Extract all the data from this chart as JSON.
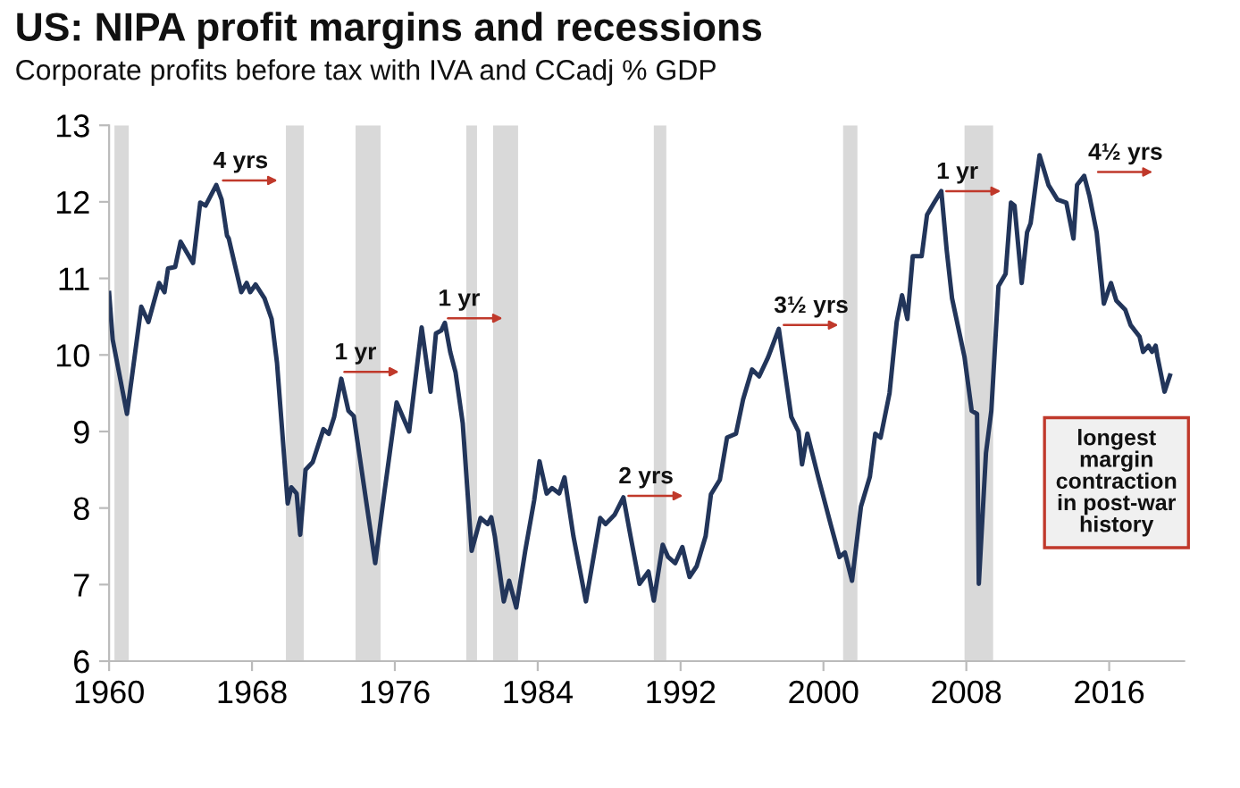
{
  "chart_data": {
    "type": "line",
    "title": "US: NIPA profit margins and recessions",
    "subtitle": "Corporate profits before tax with IVA and CCadj % GDP",
    "x": [
      1960.0,
      1960.2,
      1961.0,
      1961.8,
      1962.2,
      1962.8,
      1963.1,
      1963.3,
      1963.7,
      1964.0,
      1964.7,
      1965.1,
      1965.4,
      1966.0,
      1966.3,
      1966.6,
      1966.7,
      1967.4,
      1967.7,
      1967.9,
      1968.2,
      1968.7,
      1969.1,
      1969.4,
      1970.0,
      1970.2,
      1970.5,
      1970.7,
      1971.0,
      1971.4,
      1972.0,
      1972.3,
      1972.6,
      1973.0,
      1973.4,
      1973.7,
      1974.9,
      1975.4,
      1976.1,
      1976.8,
      1977.5,
      1978.0,
      1978.3,
      1978.6,
      1978.8,
      1979.1,
      1979.4,
      1979.8,
      1980.3,
      1980.8,
      1981.2,
      1981.4,
      1981.6,
      1982.1,
      1982.4,
      1982.8,
      1983.3,
      1983.8,
      1984.1,
      1984.5,
      1984.8,
      1985.2,
      1985.5,
      1986.0,
      1986.7,
      1987.5,
      1987.8,
      1988.3,
      1988.8,
      1989.2,
      1989.7,
      1990.2,
      1990.5,
      1991.0,
      1991.3,
      1991.7,
      1992.1,
      1992.5,
      1992.9,
      1993.4,
      1993.7,
      1994.2,
      1994.6,
      1995.1,
      1995.5,
      1996.0,
      1996.4,
      1996.9,
      1997.5,
      1998.2,
      1998.6,
      1998.8,
      1999.1,
      1999.7,
      2000.4,
      2000.9,
      2001.2,
      2001.6,
      2002.1,
      2002.6,
      2002.9,
      2003.2,
      2003.7,
      2004.1,
      2004.4,
      2004.7,
      2005.0,
      2005.5,
      2005.8,
      2006.2,
      2006.6,
      2006.9,
      2007.2,
      2007.9,
      2008.3,
      2008.6,
      2008.7,
      2009.1,
      2009.4,
      2009.8,
      2010.2,
      2010.5,
      2010.7,
      2011.1,
      2011.4,
      2011.6,
      2012.1,
      2012.6,
      2013.1,
      2013.6,
      2014.0,
      2014.2,
      2014.6,
      2014.9,
      2015.3,
      2015.7,
      2016.1,
      2016.4,
      2016.9,
      2017.2,
      2017.7,
      2017.9,
      2018.2,
      2018.4,
      2018.6,
      2018.7,
      2019.1,
      2019.4
    ],
    "series": [
      {
        "color": "#22355a",
        "values": [
          10.81,
          10.2,
          9.23,
          10.63,
          10.43,
          10.94,
          10.82,
          11.13,
          11.15,
          11.48,
          11.2,
          11.99,
          11.95,
          12.22,
          12.03,
          11.56,
          11.52,
          10.82,
          10.94,
          10.82,
          10.92,
          10.74,
          10.47,
          9.9,
          8.06,
          8.27,
          8.19,
          7.65,
          8.5,
          8.6,
          9.03,
          8.97,
          9.19,
          9.69,
          9.27,
          9.2,
          7.28,
          8.18,
          9.38,
          9.0,
          10.36,
          9.52,
          10.28,
          10.32,
          10.42,
          10.04,
          9.77,
          9.11,
          7.44,
          7.87,
          7.79,
          7.88,
          7.63,
          6.78,
          7.05,
          6.7,
          7.44,
          8.1,
          8.61,
          8.19,
          8.26,
          8.19,
          8.4,
          7.63,
          6.78,
          7.87,
          7.79,
          7.91,
          8.14,
          7.63,
          7.01,
          7.17,
          6.79,
          7.52,
          7.36,
          7.28,
          7.49,
          7.1,
          7.24,
          7.63,
          8.18,
          8.37,
          8.92,
          8.97,
          9.42,
          9.81,
          9.72,
          9.97,
          10.34,
          9.19,
          9.0,
          8.57,
          8.97,
          8.41,
          7.79,
          7.36,
          7.42,
          7.05,
          8.02,
          8.41,
          8.97,
          8.92,
          9.5,
          10.43,
          10.78,
          10.47,
          11.29,
          11.29,
          11.83,
          11.99,
          12.14,
          11.37,
          10.74,
          9.97,
          9.27,
          9.23,
          7.01,
          8.72,
          9.27,
          10.9,
          11.06,
          11.99,
          11.95,
          10.94,
          11.6,
          11.72,
          12.61,
          12.22,
          12.03,
          11.99,
          11.52,
          12.22,
          12.34,
          12.07,
          11.6,
          10.67,
          10.94,
          10.71,
          10.59,
          10.39,
          10.24,
          10.04,
          10.12,
          10.04,
          10.12,
          9.98,
          9.52,
          9.73
        ]
      }
    ],
    "xlim": [
      1960,
      2020.2
    ],
    "ylim": [
      6,
      13
    ],
    "xticks": [
      1960,
      1968,
      1976,
      1984,
      1992,
      2000,
      2008,
      2016
    ],
    "yticks": [
      6,
      7,
      8,
      9,
      10,
      11,
      12,
      13
    ],
    "grid": false,
    "bands": [
      {
        "axis": "x",
        "from": 1960.3,
        "to": 1961.1,
        "color": "#d9d9d9"
      },
      {
        "axis": "x",
        "from": 1969.9,
        "to": 1970.9,
        "color": "#d9d9d9"
      },
      {
        "axis": "x",
        "from": 1973.8,
        "to": 1975.2,
        "color": "#d9d9d9"
      },
      {
        "axis": "x",
        "from": 1980.0,
        "to": 1980.6,
        "color": "#d9d9d9"
      },
      {
        "axis": "x",
        "from": 1981.5,
        "to": 1982.9,
        "color": "#d9d9d9"
      },
      {
        "axis": "x",
        "from": 1990.5,
        "to": 1991.2,
        "color": "#d9d9d9"
      },
      {
        "axis": "x",
        "from": 2001.1,
        "to": 2001.9,
        "color": "#d9d9d9"
      },
      {
        "axis": "x",
        "from": 2007.9,
        "to": 2009.5,
        "color": "#d9d9d9"
      }
    ],
    "annotations": [
      {
        "text": "4 yrs",
        "x": 1966.1,
        "y": 12.28
      },
      {
        "text": "1 yr",
        "x": 1972.9,
        "y": 9.78
      },
      {
        "text": "1 yr",
        "x": 1978.7,
        "y": 10.48
      },
      {
        "text": "2 yrs",
        "x": 1988.8,
        "y": 8.16
      },
      {
        "text": "3½ yrs",
        "x": 1997.5,
        "y": 10.39
      },
      {
        "text": "1 yr",
        "x": 2006.6,
        "y": 12.14
      },
      {
        "text": "4½ yrs",
        "x": 2015.1,
        "y": 12.39
      },
      "longest\nmargin\ncontraction\nin post-war\nhistory"
    ]
  }
}
